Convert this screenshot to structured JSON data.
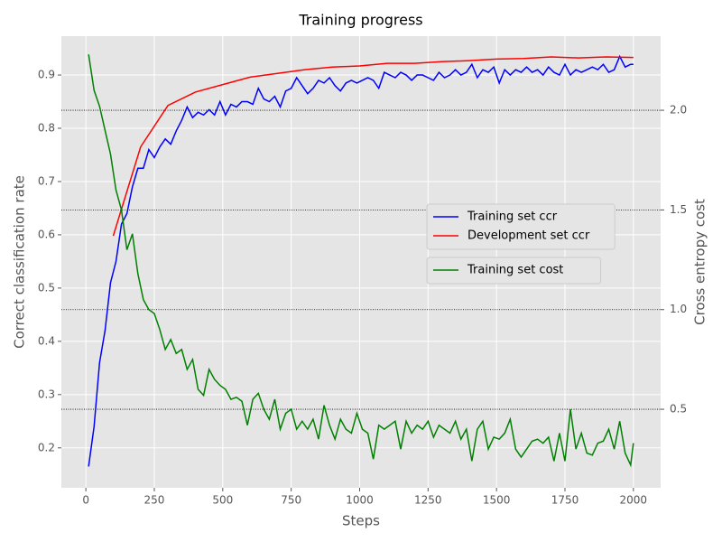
{
  "chart_data": {
    "type": "line",
    "title": "Training progress",
    "xlabel": "Steps",
    "ylabel": "Correct classification rate",
    "y2label": "Cross entropy cost",
    "xlim": [
      -89.5,
      2099.5
    ],
    "xticks": [
      0,
      250,
      500,
      750,
      1000,
      1250,
      1500,
      1750,
      2000
    ],
    "ylim": [
      0.125,
      0.973
    ],
    "yticks": [
      0.2,
      0.3,
      0.4,
      0.5,
      0.6,
      0.7,
      0.8,
      0.9
    ],
    "y2lim": [
      0.106,
      2.372
    ],
    "y2ticks": [
      0.5,
      {
        "value": 1,
        "label": "1.0"
      },
      1.5,
      {
        "value": 2,
        "label": "2.0"
      }
    ],
    "grid": true,
    "legend": "center right",
    "series": [
      {
        "name": "Training set ccr",
        "color": "#0000ff",
        "axis": "y",
        "x": [
          10,
          30,
          50,
          70,
          90,
          110,
          130,
          150,
          170,
          190,
          210,
          230,
          250,
          270,
          290,
          310,
          330,
          350,
          370,
          390,
          410,
          430,
          450,
          470,
          490,
          510,
          530,
          550,
          570,
          590,
          610,
          630,
          650,
          670,
          690,
          710,
          730,
          750,
          770,
          790,
          810,
          830,
          850,
          870,
          890,
          910,
          930,
          950,
          970,
          990,
          1010,
          1030,
          1050,
          1070,
          1090,
          1110,
          1130,
          1150,
          1170,
          1190,
          1210,
          1230,
          1250,
          1270,
          1290,
          1310,
          1330,
          1350,
          1370,
          1390,
          1410,
          1430,
          1450,
          1470,
          1490,
          1510,
          1530,
          1550,
          1570,
          1590,
          1610,
          1630,
          1650,
          1670,
          1690,
          1710,
          1730,
          1750,
          1770,
          1790,
          1810,
          1830,
          1850,
          1870,
          1890,
          1910,
          1930,
          1950,
          1970,
          1990,
          2000
        ],
        "values": [
          0.165,
          0.24,
          0.36,
          0.42,
          0.51,
          0.55,
          0.62,
          0.64,
          0.69,
          0.725,
          0.725,
          0.76,
          0.745,
          0.765,
          0.78,
          0.77,
          0.795,
          0.815,
          0.84,
          0.82,
          0.83,
          0.825,
          0.835,
          0.825,
          0.85,
          0.825,
          0.845,
          0.84,
          0.85,
          0.85,
          0.845,
          0.875,
          0.855,
          0.85,
          0.86,
          0.84,
          0.87,
          0.875,
          0.895,
          0.88,
          0.865,
          0.875,
          0.89,
          0.885,
          0.895,
          0.88,
          0.87,
          0.885,
          0.89,
          0.885,
          0.89,
          0.895,
          0.89,
          0.875,
          0.905,
          0.9,
          0.895,
          0.905,
          0.9,
          0.89,
          0.9,
          0.9,
          0.895,
          0.89,
          0.905,
          0.895,
          0.9,
          0.91,
          0.9,
          0.905,
          0.92,
          0.895,
          0.91,
          0.905,
          0.915,
          0.885,
          0.91,
          0.9,
          0.91,
          0.905,
          0.915,
          0.905,
          0.91,
          0.9,
          0.915,
          0.905,
          0.9,
          0.92,
          0.9,
          0.91,
          0.905,
          0.91,
          0.915,
          0.91,
          0.92,
          0.905,
          0.91,
          0.935,
          0.915,
          0.92,
          0.92
        ]
      },
      {
        "name": "Development set ccr",
        "color": "#ff0000",
        "axis": "y",
        "x": [
          100,
          200,
          300,
          400,
          500,
          600,
          700,
          800,
          900,
          1000,
          1100,
          1200,
          1300,
          1400,
          1500,
          1600,
          1700,
          1800,
          1900,
          2000
        ],
        "values": [
          0.598,
          0.765,
          0.843,
          0.868,
          0.882,
          0.896,
          0.903,
          0.91,
          0.915,
          0.917,
          0.922,
          0.922,
          0.925,
          0.927,
          0.93,
          0.931,
          0.934,
          0.932,
          0.934,
          0.933
        ]
      },
      {
        "name": "Training set cost",
        "color": "#008000",
        "axis": "y2",
        "x": [
          10,
          30,
          50,
          70,
          90,
          110,
          130,
          150,
          170,
          190,
          210,
          230,
          250,
          270,
          290,
          310,
          330,
          350,
          370,
          390,
          410,
          430,
          450,
          470,
          490,
          510,
          530,
          550,
          570,
          590,
          610,
          630,
          650,
          670,
          690,
          710,
          730,
          750,
          770,
          790,
          810,
          830,
          850,
          870,
          890,
          910,
          930,
          950,
          970,
          990,
          1010,
          1030,
          1050,
          1070,
          1090,
          1110,
          1130,
          1150,
          1170,
          1190,
          1210,
          1230,
          1250,
          1270,
          1290,
          1310,
          1330,
          1350,
          1370,
          1390,
          1410,
          1430,
          1450,
          1470,
          1490,
          1510,
          1530,
          1550,
          1570,
          1590,
          1610,
          1630,
          1650,
          1670,
          1690,
          1710,
          1730,
          1750,
          1770,
          1790,
          1810,
          1830,
          1850,
          1870,
          1890,
          1910,
          1930,
          1950,
          1970,
          1990,
          2000
        ],
        "values": [
          2.28,
          2.1,
          2.02,
          1.9,
          1.78,
          1.6,
          1.5,
          1.3,
          1.38,
          1.18,
          1.05,
          1.0,
          0.98,
          0.9,
          0.8,
          0.85,
          0.78,
          0.8,
          0.7,
          0.75,
          0.6,
          0.57,
          0.7,
          0.65,
          0.62,
          0.6,
          0.55,
          0.56,
          0.54,
          0.42,
          0.55,
          0.58,
          0.5,
          0.45,
          0.55,
          0.4,
          0.48,
          0.5,
          0.4,
          0.44,
          0.4,
          0.45,
          0.35,
          0.52,
          0.42,
          0.35,
          0.45,
          0.4,
          0.38,
          0.48,
          0.4,
          0.38,
          0.25,
          0.42,
          0.4,
          0.42,
          0.44,
          0.3,
          0.44,
          0.38,
          0.42,
          0.4,
          0.44,
          0.36,
          0.42,
          0.4,
          0.38,
          0.44,
          0.35,
          0.4,
          0.24,
          0.4,
          0.44,
          0.3,
          0.36,
          0.35,
          0.38,
          0.45,
          0.3,
          0.26,
          0.3,
          0.34,
          0.35,
          0.33,
          0.36,
          0.24,
          0.38,
          0.24,
          0.5,
          0.3,
          0.38,
          0.28,
          0.27,
          0.33,
          0.34,
          0.4,
          0.3,
          0.44,
          0.28,
          0.22,
          0.33
        ]
      }
    ]
  }
}
